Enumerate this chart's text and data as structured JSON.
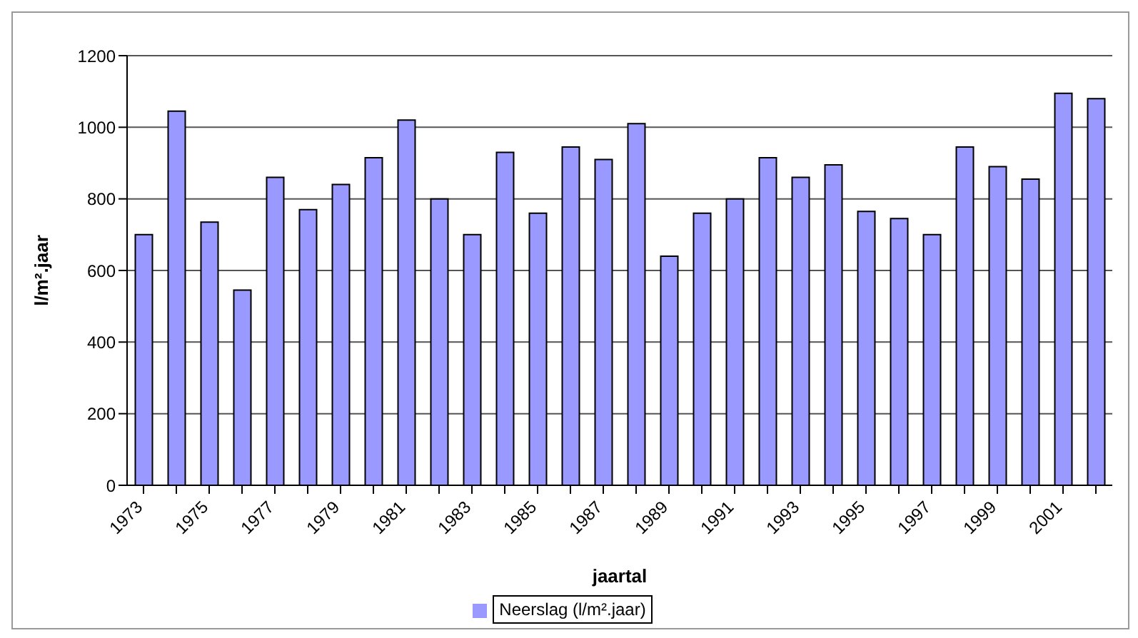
{
  "chart_data": {
    "type": "bar",
    "xlabel": "jaartal",
    "ylabel": "l/m².jaar",
    "categories": [
      "1973",
      null,
      "1975",
      null,
      "1977",
      null,
      "1979",
      null,
      "1981",
      null,
      "1983",
      null,
      "1985",
      null,
      "1987",
      null,
      "1989",
      null,
      "1991",
      null,
      "1993",
      null,
      "1995",
      null,
      "1997",
      null,
      "1999",
      null,
      "2001",
      null
    ],
    "series": [
      {
        "name": "Neerslag (l/m².jaar)",
        "color": "#9999ff",
        "values": [
          700,
          1045,
          735,
          545,
          860,
          770,
          840,
          915,
          1020,
          800,
          700,
          930,
          760,
          945,
          910,
          1010,
          640,
          760,
          800,
          915,
          860,
          895,
          765,
          745,
          700,
          945,
          890,
          855,
          1095,
          1080
        ]
      }
    ],
    "ylim": [
      0,
      1200
    ],
    "yticks": [
      0,
      200,
      400,
      600,
      800,
      1000,
      1200
    ],
    "grid": "y",
    "legend": "bottom"
  }
}
